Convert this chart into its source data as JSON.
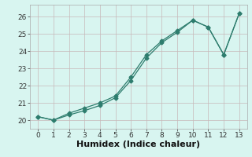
{
  "line1_x": [
    0,
    1,
    2,
    3,
    4,
    5,
    6,
    7,
    8,
    9,
    10,
    11,
    12,
    13
  ],
  "line1_y": [
    20.2,
    20.0,
    20.4,
    20.7,
    21.0,
    21.4,
    22.5,
    23.8,
    24.6,
    25.2,
    25.8,
    25.4,
    23.8,
    26.2
  ],
  "line2_x": [
    0,
    1,
    2,
    3,
    4,
    5,
    6,
    7,
    8,
    9,
    10,
    11,
    12,
    13
  ],
  "line2_y": [
    20.2,
    20.0,
    20.3,
    20.55,
    20.85,
    21.3,
    22.3,
    23.6,
    24.5,
    25.1,
    25.8,
    25.4,
    23.8,
    26.2
  ],
  "line_color": "#2e7d6e",
  "bg_color": "#d8f5f0",
  "grid_major_color": "#c8b8b8",
  "grid_minor_color": "#ddd0d0",
  "xlabel": "Humidex (Indice chaleur)",
  "xlim": [
    -0.5,
    13.5
  ],
  "ylim": [
    19.5,
    26.7
  ],
  "yticks": [
    20,
    21,
    22,
    23,
    24,
    25,
    26
  ],
  "xticks": [
    0,
    1,
    2,
    3,
    4,
    5,
    6,
    7,
    8,
    9,
    10,
    11,
    12,
    13
  ],
  "marker": "D",
  "markersize": 2.5,
  "linewidth": 0.9,
  "xlabel_fontsize": 8,
  "tick_fontsize": 6.5
}
